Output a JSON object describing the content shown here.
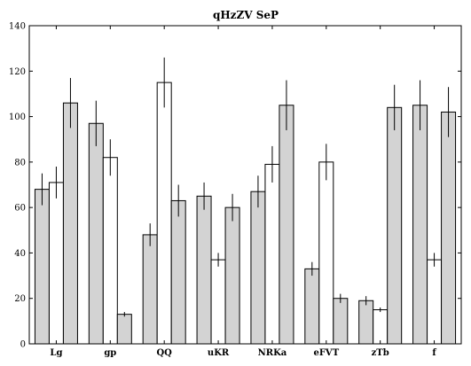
{
  "chart_data": {
    "type": "bar",
    "title": "qHzZV SeP",
    "xlabel": "",
    "ylabel": "",
    "ylim": [
      0,
      140
    ],
    "yticks": [
      0,
      20,
      40,
      60,
      80,
      100,
      120,
      140
    ],
    "grid": false,
    "legend": "none",
    "categories": [
      "Lg",
      "gp",
      "QQ",
      "uKR",
      "NRKa",
      "eFVT",
      "zTb",
      "f"
    ],
    "series": [
      {
        "fill": "#d3d3d3",
        "values": [
          68,
          97,
          48,
          65,
          67,
          33,
          19,
          105
        ],
        "errors": [
          7,
          10,
          5,
          6,
          7,
          3,
          2,
          11
        ]
      },
      {
        "fill": "#ffffff",
        "values": [
          71,
          82,
          115,
          37,
          79,
          80,
          15,
          37
        ],
        "errors": [
          7,
          8,
          11,
          3,
          8,
          8,
          1,
          3
        ]
      },
      {
        "fill": "#d3d3d3",
        "values": [
          106,
          13,
          63,
          60,
          105,
          20,
          104,
          102
        ],
        "errors": [
          11,
          1,
          7,
          6,
          11,
          2,
          10,
          11
        ]
      }
    ]
  }
}
